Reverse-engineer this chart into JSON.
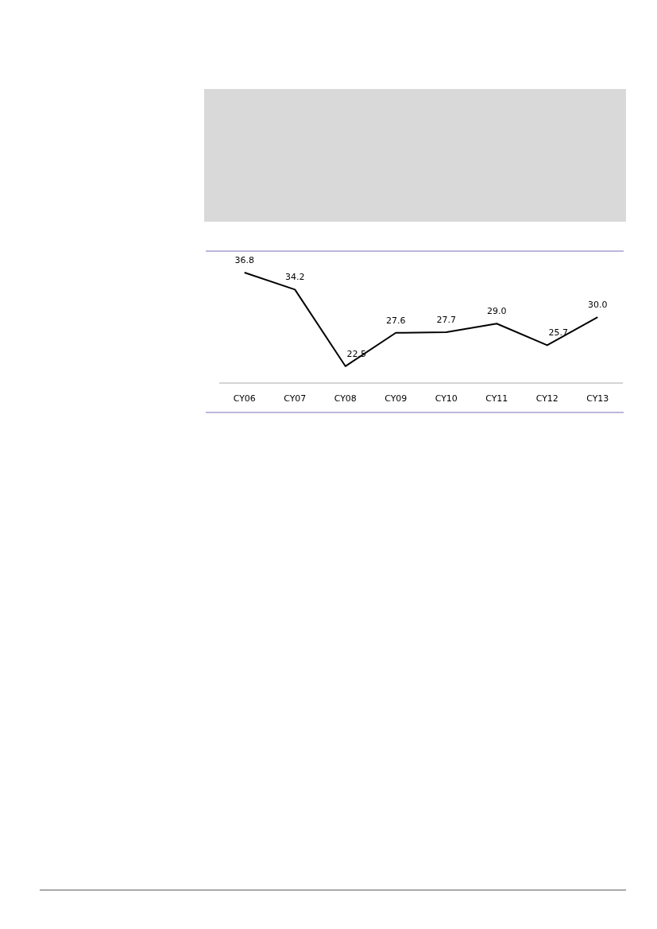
{
  "chart_data": {
    "type": "line",
    "categories": [
      "CY06",
      "CY07",
      "CY08",
      "CY09",
      "CY10",
      "CY11",
      "CY12",
      "CY13"
    ],
    "series": [
      {
        "color": "#000000",
        "values": [
          36.8,
          34.2,
          22.5,
          27.6,
          27.7,
          29.0,
          25.7,
          30.0
        ],
        "value_labels": [
          "36.8",
          "34.2",
          "22.5",
          "27.6",
          "27.7",
          "29.0",
          "25.7",
          "30.0"
        ]
      }
    ],
    "marker": "none",
    "line_style": "solid",
    "grid": false
  }
}
